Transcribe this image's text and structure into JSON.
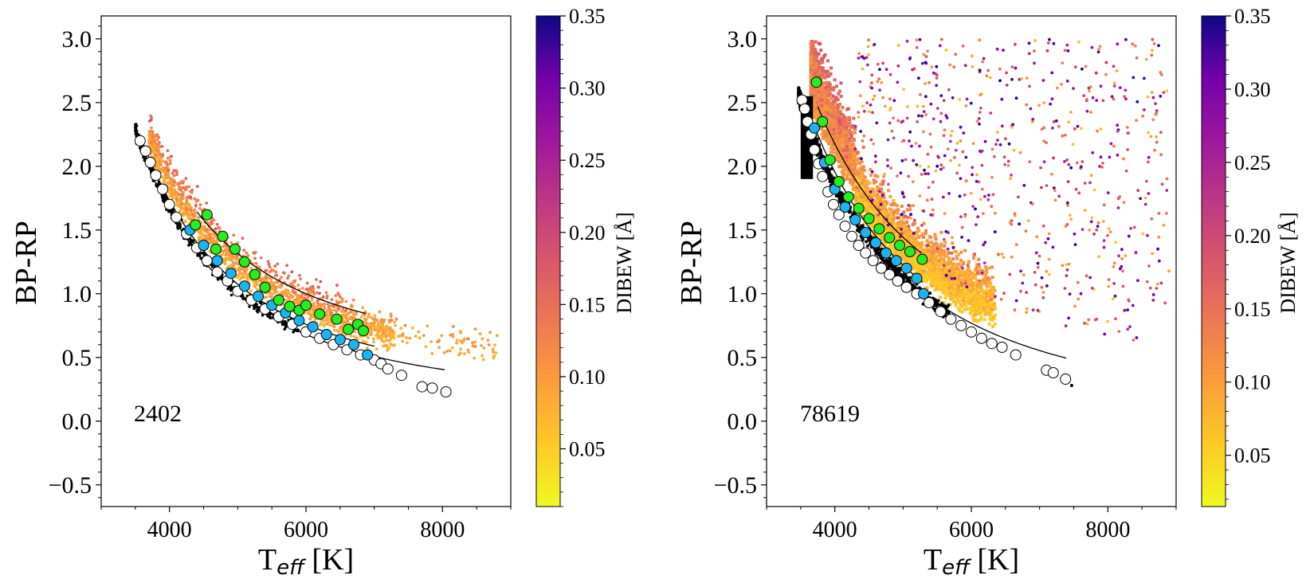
{
  "chart_data": [
    {
      "type": "scatter",
      "panel": "left",
      "annotation": "2402",
      "xlabel_main": "T",
      "xlabel_sub": "eff",
      "xlabel_unit": " [K]",
      "ylabel": "BP-RP",
      "xlim": [
        3000,
        9000
      ],
      "ylim": [
        -0.67,
        3.18
      ],
      "xticks": [
        4000,
        6000,
        8000
      ],
      "xtick_labels": [
        "4000",
        "6000",
        "8000"
      ],
      "yticks": [
        -0.5,
        0.0,
        0.5,
        1.0,
        1.5,
        2.0,
        2.5,
        3.0
      ],
      "ytick_labels": [
        "−0.5",
        "0.0",
        "0.5",
        "1.0",
        "1.5",
        "2.0",
        "2.5",
        "3.0"
      ],
      "colorbar": {
        "label": "DIBEW [Å]",
        "range": [
          0.01,
          0.35
        ],
        "ticks": [
          0.05,
          0.1,
          0.15,
          0.2,
          0.25,
          0.3,
          0.35
        ],
        "tick_labels": [
          "0.05",
          "0.10",
          "0.15",
          "0.20",
          "0.25",
          "0.30",
          "0.35"
        ],
        "colormap": "plasma_r"
      },
      "series": [
        {
          "name": "isochrone black points",
          "color": "#000000",
          "x": [
            3520,
            3560,
            3600,
            3650,
            3700,
            3750,
            3800,
            3850,
            3900,
            3950,
            4000,
            4050,
            4100,
            4150,
            4200
          ],
          "y": [
            2.18,
            2.22,
            2.15,
            2.1,
            2.03,
            1.98,
            1.92,
            1.86,
            1.8,
            1.75,
            1.68,
            1.64,
            1.6,
            1.55,
            1.5
          ]
        },
        {
          "name": "open circles",
          "color": "#ffffff",
          "x": [
            3570,
            3650,
            3720,
            3800,
            3900,
            4000,
            4100,
            4250,
            4400,
            4550,
            4700,
            4850,
            5000,
            5200,
            5400,
            5600,
            5800,
            6000,
            6200,
            6400,
            6600,
            6800,
            7000,
            7100,
            7200,
            7400,
            7700,
            7850,
            8050
          ],
          "y": [
            2.2,
            2.12,
            2.03,
            1.93,
            1.82,
            1.7,
            1.6,
            1.47,
            1.36,
            1.26,
            1.17,
            1.1,
            1.02,
            0.95,
            0.88,
            0.82,
            0.76,
            0.7,
            0.65,
            0.6,
            0.56,
            0.52,
            0.48,
            0.45,
            0.41,
            0.36,
            0.27,
            0.26,
            0.23
          ]
        },
        {
          "name": "blue circles",
          "color": "#1cb4f0",
          "x": [
            4300,
            4500,
            4700,
            4900,
            5100,
            5300,
            5500,
            5700,
            5900,
            6100,
            6300,
            6500,
            6700,
            6900
          ],
          "y": [
            1.5,
            1.38,
            1.26,
            1.16,
            1.06,
            0.98,
            0.91,
            0.85,
            0.79,
            0.74,
            0.68,
            0.64,
            0.6,
            0.52
          ]
        },
        {
          "name": "green circles",
          "color": "#22ee22",
          "x": [
            4380,
            4550,
            4680,
            4780,
            4960,
            5100,
            5250,
            5400,
            5600,
            5760,
            5900,
            6000,
            6200,
            6450,
            6620,
            6760,
            6840
          ],
          "y": [
            1.54,
            1.62,
            1.35,
            1.45,
            1.35,
            1.25,
            1.15,
            1.05,
            0.95,
            0.9,
            0.87,
            0.91,
            0.84,
            0.8,
            0.72,
            0.76,
            0.71
          ]
        }
      ]
    },
    {
      "type": "scatter",
      "panel": "right",
      "annotation": "78619",
      "xlabel_main": "T",
      "xlabel_sub": "eff",
      "xlabel_unit": " [K]",
      "ylabel": "BP-RP",
      "xlim": [
        3000,
        9000
      ],
      "ylim": [
        -0.67,
        3.18
      ],
      "xticks": [
        4000,
        6000,
        8000
      ],
      "xtick_labels": [
        "4000",
        "6000",
        "8000"
      ],
      "yticks": [
        -0.5,
        0.0,
        0.5,
        1.0,
        1.5,
        2.0,
        2.5,
        3.0
      ],
      "ytick_labels": [
        "−0.5",
        "0.0",
        "0.5",
        "1.0",
        "1.5",
        "2.0",
        "2.5",
        "3.0"
      ],
      "colorbar": {
        "label": "DIBEW [Å]",
        "range": [
          0.015,
          0.35
        ],
        "ticks": [
          0.05,
          0.1,
          0.15,
          0.2,
          0.25,
          0.3,
          0.35
        ],
        "tick_labels": [
          "0.05",
          "0.10",
          "0.15",
          "0.20",
          "0.25",
          "0.30",
          "0.35"
        ],
        "colormap": "plasma_r"
      },
      "series": [
        {
          "name": "open circles",
          "color": "#ffffff",
          "x": [
            3520,
            3560,
            3600,
            3650,
            3700,
            3760,
            3820,
            3900,
            3980,
            4060,
            4150,
            4250,
            4350,
            4450,
            4560,
            4680,
            4800,
            4920,
            5050,
            5200,
            5380,
            5550,
            5700,
            5850,
            6000,
            6150,
            6300,
            6450,
            6650,
            7100,
            7200,
            7380
          ],
          "y": [
            2.52,
            2.45,
            2.35,
            2.25,
            2.13,
            2.02,
            1.92,
            1.8,
            1.7,
            1.62,
            1.53,
            1.45,
            1.38,
            1.32,
            1.26,
            1.2,
            1.15,
            1.1,
            1.05,
            1.0,
            0.93,
            0.86,
            0.8,
            0.75,
            0.7,
            0.65,
            0.61,
            0.58,
            0.52,
            0.4,
            0.38,
            0.33
          ]
        },
        {
          "name": "blue circles",
          "color": "#1cb4f0",
          "x": [
            3700,
            3850,
            4000,
            4150,
            4300,
            4450,
            4600,
            4750,
            4900,
            5050,
            5200,
            5300
          ],
          "y": [
            2.3,
            2.03,
            1.82,
            1.68,
            1.58,
            1.48,
            1.4,
            1.32,
            1.26,
            1.2,
            1.12,
            1.0
          ]
        },
        {
          "name": "green circles",
          "color": "#22ee22",
          "x": [
            3730,
            3820,
            3930,
            4060,
            4200,
            4350,
            4500,
            4650,
            4800,
            4950,
            5100,
            5280
          ],
          "y": [
            2.66,
            2.35,
            2.05,
            1.88,
            1.76,
            1.67,
            1.59,
            1.51,
            1.44,
            1.38,
            1.33,
            1.27
          ]
        }
      ]
    }
  ]
}
